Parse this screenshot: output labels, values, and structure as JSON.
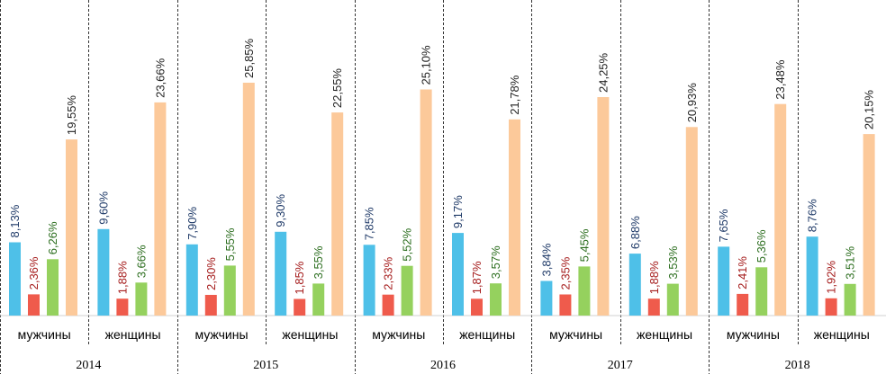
{
  "chart_data": {
    "type": "bar",
    "title": "",
    "xlabel": "",
    "ylabel": "",
    "ylim": [
      0,
      28
    ],
    "grid": false,
    "legend": "none",
    "series_colors": [
      "#4ec0e8",
      "#ef5b4c",
      "#95d15e",
      "#fcc99a"
    ],
    "label_colors": [
      "#1f3a68",
      "#a51c1c",
      "#2c6e1f",
      "#222222"
    ],
    "years": [
      {
        "year": "2014",
        "groups": [
          {
            "gender": "мужчины",
            "values": [
              8.13,
              2.36,
              6.26,
              19.55
            ],
            "labels": [
              "8,13%",
              "2,36%",
              "6,26%",
              "19,55%"
            ]
          },
          {
            "gender": "женщины",
            "values": [
              9.6,
              1.88,
              3.66,
              23.66
            ],
            "labels": [
              "9,60%",
              "1,88%",
              "3,66%",
              "23,66%"
            ]
          }
        ]
      },
      {
        "year": "2015",
        "groups": [
          {
            "gender": "мужчины",
            "values": [
              7.9,
              2.3,
              5.55,
              25.85
            ],
            "labels": [
              "7,90%",
              "2,30%",
              "5,55%",
              "25,85%"
            ]
          },
          {
            "gender": "женщины",
            "values": [
              9.3,
              1.85,
              3.55,
              22.55
            ],
            "labels": [
              "9,30%",
              "1,85%",
              "3,55%",
              "22,55%"
            ]
          }
        ]
      },
      {
        "year": "2016",
        "groups": [
          {
            "gender": "мужчины",
            "values": [
              7.85,
              2.33,
              5.52,
              25.1
            ],
            "labels": [
              "7,85%",
              "2,33%",
              "5,52%",
              "25,10%"
            ]
          },
          {
            "gender": "женщины",
            "values": [
              9.17,
              1.87,
              3.57,
              21.78
            ],
            "labels": [
              "9,17%",
              "1,87%",
              "3,57%",
              "21,78%"
            ]
          }
        ]
      },
      {
        "year": "2017",
        "groups": [
          {
            "gender": "мужчины",
            "values": [
              3.84,
              2.35,
              5.45,
              24.25
            ],
            "labels": [
              "3,84%",
              "2,35%",
              "5,45%",
              "24,25%"
            ]
          },
          {
            "gender": "женщины",
            "values": [
              6.88,
              1.88,
              3.53,
              20.93
            ],
            "labels": [
              "6,88%",
              "1,88%",
              "3,53%",
              "20,93%"
            ]
          }
        ]
      },
      {
        "year": "2018",
        "groups": [
          {
            "gender": "мужчины",
            "values": [
              7.65,
              2.41,
              5.36,
              23.48
            ],
            "labels": [
              "7,65%",
              "2,41%",
              "5,36%",
              "23,48%"
            ]
          },
          {
            "gender": "женщины",
            "values": [
              8.76,
              1.92,
              3.51,
              20.15
            ],
            "labels": [
              "8,76%",
              "1,92%",
              "3,51%",
              "20,15%"
            ]
          }
        ]
      }
    ]
  }
}
